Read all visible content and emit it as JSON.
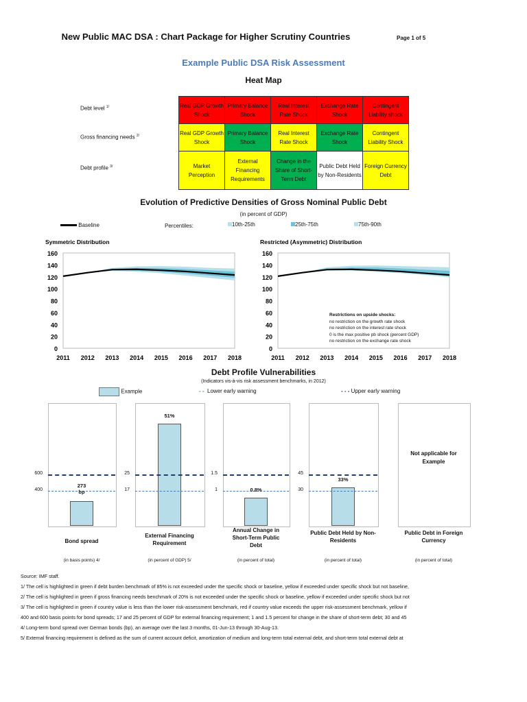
{
  "header": {
    "title": "New Public MAC DSA : Chart Package for Higher Scrutiny Countries",
    "page": "Page 1 of 5",
    "subtitle": "Example Public DSA Risk Assessment"
  },
  "heatmap": {
    "title": "Heat Map",
    "colors": {
      "red": "#ff0000",
      "yellow": "#ffff00",
      "green": "#00b050",
      "white": "#ffffff"
    },
    "rows": [
      {
        "label": "Debt level",
        "note": "1/",
        "cells": [
          {
            "text": "Real GDP Growth Shock",
            "color": "red"
          },
          {
            "text": "Primary Balance Shock",
            "color": "red"
          },
          {
            "text": "Real Interest Rate Shock",
            "color": "red"
          },
          {
            "text": "Exchange Rate Shock",
            "color": "red"
          },
          {
            "text": "Contingent Liability shock",
            "color": "red"
          }
        ]
      },
      {
        "label": "Gross financing needs",
        "note": "2/",
        "cells": [
          {
            "text": "Real GDP Growth Shock",
            "color": "yellow"
          },
          {
            "text": "Primary Balance Shock",
            "color": "green"
          },
          {
            "text": "Real Interest Rate Shock",
            "color": "yellow"
          },
          {
            "text": "Exchange Rate Shock",
            "color": "green"
          },
          {
            "text": "Contingent Liability Shock",
            "color": "yellow"
          }
        ]
      },
      {
        "label": "Debt profile",
        "note": "3/",
        "cells": [
          {
            "text": "Market Perception",
            "color": "yellow"
          },
          {
            "text": "External Financing Requirements",
            "color": "yellow"
          },
          {
            "text": "Change in the Share of Short-Term Debt",
            "color": "green"
          },
          {
            "text": "Public Debt Held by Non-Residents",
            "color": "white"
          },
          {
            "text": "Foreign Currency Debt",
            "color": "yellow"
          }
        ]
      }
    ]
  },
  "fan": {
    "title": "Evolution of Predictive Densities of Gross Nominal Public Debt",
    "unit": "(in percent of GDP)",
    "legend": {
      "baseline": "Baseline",
      "percentiles": "Percentiles:",
      "p1": "10th-25th",
      "p2": "25th-75th",
      "p3": "75th-90th"
    },
    "colors": {
      "outer": "#b7e0ea",
      "inner": "#6fc3d8",
      "baseline": "#000000"
    },
    "restrictions": {
      "title": "Restrictions on upside shocks:",
      "lines": [
        "no restriction on the growth rate shock",
        "no restriction on the interest rate shock",
        "0 is the max positive pb shock (percent GDP)",
        "no restriction on the exchange rate shock"
      ]
    }
  },
  "dpv": {
    "title": "Debt Profile Vulnerabilities",
    "subtitle": "(Indicators vis-à-vis risk assessment benchmarks, in 2012)",
    "legend": {
      "example": "Example",
      "lower": "Lower early warning",
      "upper": "Upper early warning"
    },
    "colors": {
      "bar": "#b7dde8",
      "upper": "#1f3a6e",
      "lower": "#4a78b5"
    },
    "not_applicable": "Not applicable for Example"
  },
  "chart_data": [
    {
      "type": "area",
      "title": "Symmetric Distribution",
      "x": [
        2011,
        2012,
        2013,
        2014,
        2015,
        2016,
        2017,
        2018
      ],
      "ylim": [
        0,
        160
      ],
      "yticks": [
        0,
        20,
        40,
        60,
        80,
        100,
        120,
        140,
        160
      ],
      "baseline": [
        121,
        127,
        132,
        132.5,
        131,
        129,
        126,
        123
      ],
      "p10": [
        121,
        127,
        130,
        128.5,
        126,
        122,
        118,
        114
      ],
      "p25": [
        121,
        127,
        131,
        130.5,
        128.5,
        125.5,
        122,
        118.5
      ],
      "p75": [
        121,
        127,
        133.5,
        135,
        134.5,
        133,
        131,
        128.5
      ],
      "p90": [
        121,
        127,
        135,
        137.5,
        138,
        137,
        135,
        134
      ]
    },
    {
      "type": "area",
      "title": "Restricted (Asymmetric) Distribution",
      "x": [
        2011,
        2012,
        2013,
        2014,
        2015,
        2016,
        2017,
        2018
      ],
      "ylim": [
        0,
        160
      ],
      "yticks": [
        0,
        20,
        40,
        60,
        80,
        100,
        120,
        140,
        160
      ],
      "baseline": [
        121,
        127,
        132,
        132.5,
        131,
        129,
        126,
        123
      ],
      "p10": [
        121,
        127,
        131,
        130.5,
        128.5,
        126,
        123,
        119
      ],
      "p25": [
        121,
        127,
        131.5,
        131.5,
        130,
        127.5,
        124.5,
        121
      ],
      "p75": [
        121,
        127,
        134,
        135.5,
        135.5,
        134,
        132,
        130
      ],
      "p90": [
        121,
        127,
        136,
        138.5,
        139,
        138,
        137,
        136
      ]
    },
    {
      "type": "bar",
      "panels": [
        {
          "title": "Bond spread",
          "unit": "(in basis points) 4/",
          "value": 273,
          "label": "273 bp",
          "lower": 400,
          "upper": 600,
          "lower_label": "400",
          "upper_label": "600"
        },
        {
          "title": "External Financing Requirement",
          "unit": "(in percent of GDP) 5/",
          "value": 51,
          "label": "51%",
          "lower": 17,
          "upper": 25,
          "lower_label": "17",
          "upper_label": "25"
        },
        {
          "title": "Annual Change in Short-Term Public Debt",
          "unit": "(in percent of total)",
          "value": 0.8,
          "label": "0.8%",
          "lower": 1,
          "upper": 1.5,
          "lower_label": "1",
          "upper_label": "1.5"
        },
        {
          "title": "Public Debt Held by Non-Residents",
          "unit": "(in percent of total)",
          "value": 33,
          "label": "33%",
          "lower": 30,
          "upper": 45,
          "lower_label": "30",
          "upper_label": "45"
        },
        {
          "title": "Public Debt in Foreign Currency",
          "unit": "(in percent of total)",
          "value": null
        }
      ]
    }
  ],
  "footnotes": [
    "Source: IMF staff.",
    "1/ The cell is highlighted in green if debt burden benchmark of 85% is not exceeded under the specific shock or baseline, yellow if exceeded under specific shock but not baseline,",
    "2/ The cell is highlighted in green if gross financing needs benchmark of 20% is not exceeded under the specific shock or baseline, yellow if exceeded under specific shock but not",
    "3/ The cell is highlighted in green if country value is less  than the lower risk-assessment benchmark, red if country value exceeds the upper risk-assessment benchmark, yellow if",
    "400 and 600 basis points for bond spreads; 17 and 25 percent of GDP for external financing requirement; 1 and 1.5 percent for change in the share of short-term debt; 30 and 45",
    "4/ Long-term bond spread over German bonds (bp), an average over the last 3 months, 01-Jun-13 through 30-Aug-13.",
    "5/ External financing requirement is defined as the sum of current account deficit, amortization of medium and long-term total external debt, and short-term total external debt at"
  ]
}
